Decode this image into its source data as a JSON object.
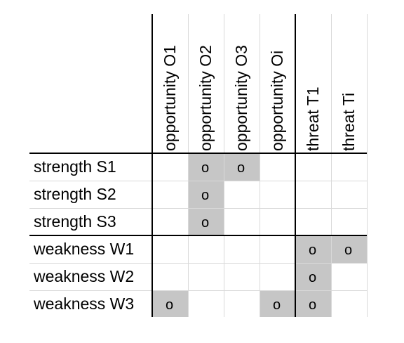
{
  "columns": [
    {
      "label": "opportunity O1"
    },
    {
      "label": "opportunity O2"
    },
    {
      "label": "opportunity O3"
    },
    {
      "label": "opportunity Oi"
    },
    {
      "label": "threat T1"
    },
    {
      "label": "threat Ti"
    }
  ],
  "rows": [
    {
      "label": "strength S1",
      "cells": [
        "",
        "o",
        "o",
        "",
        "",
        ""
      ]
    },
    {
      "label": "strength S2",
      "cells": [
        "",
        "o",
        "",
        "",
        "",
        ""
      ]
    },
    {
      "label": "strength S3",
      "cells": [
        "",
        "o",
        "",
        "",
        "",
        ""
      ]
    },
    {
      "label": "weakness W1",
      "cells": [
        "",
        "",
        "",
        "",
        "o",
        "o"
      ]
    },
    {
      "label": "weakness W2",
      "cells": [
        "",
        "",
        "",
        "",
        "o",
        ""
      ]
    },
    {
      "label": "weakness W3",
      "cells": [
        "o",
        "",
        "",
        "o",
        "o",
        ""
      ]
    }
  ],
  "shaded_cells": [
    [
      false,
      true,
      true,
      false,
      false,
      false
    ],
    [
      false,
      true,
      false,
      false,
      false,
      false
    ],
    [
      false,
      true,
      false,
      false,
      false,
      false
    ],
    [
      false,
      false,
      false,
      false,
      true,
      true
    ],
    [
      false,
      false,
      false,
      false,
      true,
      false
    ],
    [
      true,
      false,
      false,
      true,
      true,
      false
    ]
  ],
  "colors": {
    "shade": "#c6c6c6",
    "grid": "#d9d9d9",
    "border": "#000000"
  }
}
